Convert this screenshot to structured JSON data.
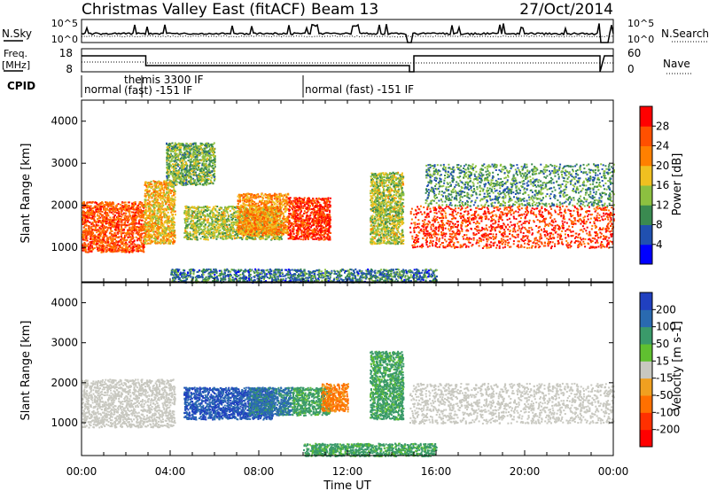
{
  "header": {
    "station": "Christmas Valley East (fitACF)",
    "beam": "Beam 13",
    "date": "27/Oct/2014"
  },
  "noise_panel": {
    "left_label": "N.Sky",
    "right_label": "N.Search",
    "left_ticks": [
      "10^5",
      "10^0"
    ],
    "right_ticks": [
      "10^5",
      "10^0"
    ]
  },
  "freq_panel": {
    "left_label_1": "Freq.",
    "left_label_2": "[MHz]",
    "right_label": "Nave",
    "left_ticks": [
      "18",
      "8"
    ],
    "right_ticks": [
      "60",
      "0"
    ]
  },
  "cpid": {
    "label": "CPID",
    "segments": [
      {
        "start_hour": 0,
        "text": "normal"
      },
      {
        "start_hour": 2.7,
        "text": "themis 3300 IF"
      },
      {
        "start_hour": 2.7,
        "text": "(fast) -151 IF"
      },
      {
        "start_hour": 10.0,
        "text": "normal (fast) -151 IF"
      }
    ]
  },
  "x_axis": {
    "label": "Time UT",
    "ticks": [
      "00:00",
      "04:00",
      "08:00",
      "12:00",
      "16:00",
      "20:00",
      "00:00"
    ]
  },
  "power_panel": {
    "ylabel": "Slant Range [km]",
    "yticks": [
      "1000",
      "2000",
      "3000",
      "4000"
    ],
    "colorbar_label": "Power [dB]",
    "colorbar_ticks": [
      "4",
      "8",
      "12",
      "16",
      "20",
      "24",
      "28"
    ],
    "colors": [
      "#0000ff",
      "#2050b0",
      "#3a8a50",
      "#8cc040",
      "#f0c020",
      "#ff8000",
      "#ff5000",
      "#ff0000"
    ]
  },
  "velocity_panel": {
    "ylabel": "Slant Range [km]",
    "yticks": [
      "1000",
      "2000",
      "3000",
      "4000"
    ],
    "colorbar_label": "Velocity [m s-1]",
    "colorbar_ticks": [
      "200",
      "100",
      "50",
      "15",
      "-15",
      "-50",
      "-100",
      "-200"
    ],
    "colors": [
      "#2040c0",
      "#2a6ab0",
      "#3a9a6a",
      "#60c030",
      "#c8c8c0",
      "#f0a020",
      "#ff7000",
      "#ff3000",
      "#ff0000"
    ]
  },
  "chart_data": [
    {
      "type": "heatmap",
      "title": "Power [dB]",
      "xlabel": "Time UT",
      "ylabel": "Slant Range [km]",
      "xlim": [
        0,
        24
      ],
      "ylim": [
        180,
        4500
      ],
      "color_scale": [
        0,
        30
      ],
      "echo_regions": [
        {
          "t0": 0.0,
          "t1": 2.8,
          "r0": 900,
          "r1": 2100,
          "power": 24
        },
        {
          "t0": 2.8,
          "t1": 4.2,
          "r0": 1100,
          "r1": 2600,
          "power": 18
        },
        {
          "t0": 3.8,
          "t1": 6.0,
          "r0": 2500,
          "r1": 3500,
          "power": 12
        },
        {
          "t0": 4.6,
          "t1": 9.0,
          "r0": 1200,
          "r1": 2000,
          "power": 14
        },
        {
          "t0": 7.0,
          "t1": 9.3,
          "r0": 1300,
          "r1": 2300,
          "power": 20
        },
        {
          "t0": 9.3,
          "t1": 11.2,
          "r0": 1200,
          "r1": 2200,
          "power": 26
        },
        {
          "t0": 13.0,
          "t1": 14.5,
          "r0": 1100,
          "r1": 2800,
          "power": 14
        },
        {
          "t0": 14.8,
          "t1": 24.0,
          "r0": 1000,
          "r1": 2000,
          "power": 26
        },
        {
          "t0": 15.5,
          "t1": 24.0,
          "r0": 2000,
          "r1": 3000,
          "power": 10
        },
        {
          "t0": 4.0,
          "t1": 16.0,
          "r0": 180,
          "r1": 500,
          "power": 8
        }
      ]
    },
    {
      "type": "heatmap",
      "title": "Velocity [m s-1]",
      "xlabel": "Time UT",
      "ylabel": "Slant Range [km]",
      "xlim": [
        0,
        24
      ],
      "ylim": [
        180,
        4500
      ],
      "color_scale": [
        -200,
        200
      ],
      "echo_regions": [
        {
          "t0": 0.0,
          "t1": 4.2,
          "r0": 900,
          "r1": 2100,
          "velocity": 0
        },
        {
          "t0": 4.6,
          "t1": 8.6,
          "r0": 1100,
          "r1": 1900,
          "velocity": 150
        },
        {
          "t0": 7.5,
          "t1": 9.5,
          "r0": 1200,
          "r1": 1900,
          "velocity": 80
        },
        {
          "t0": 9.5,
          "t1": 11.2,
          "r0": 1200,
          "r1": 1900,
          "velocity": 40
        },
        {
          "t0": 10.8,
          "t1": 12.0,
          "r0": 1300,
          "r1": 2000,
          "velocity": -40
        },
        {
          "t0": 13.0,
          "t1": 14.5,
          "r0": 1100,
          "r1": 2800,
          "velocity": 40
        },
        {
          "t0": 14.8,
          "t1": 24.0,
          "r0": 1000,
          "r1": 2000,
          "velocity": 0
        },
        {
          "t0": 10.0,
          "t1": 16.0,
          "r0": 180,
          "r1": 500,
          "velocity": 40
        }
      ]
    }
  ]
}
